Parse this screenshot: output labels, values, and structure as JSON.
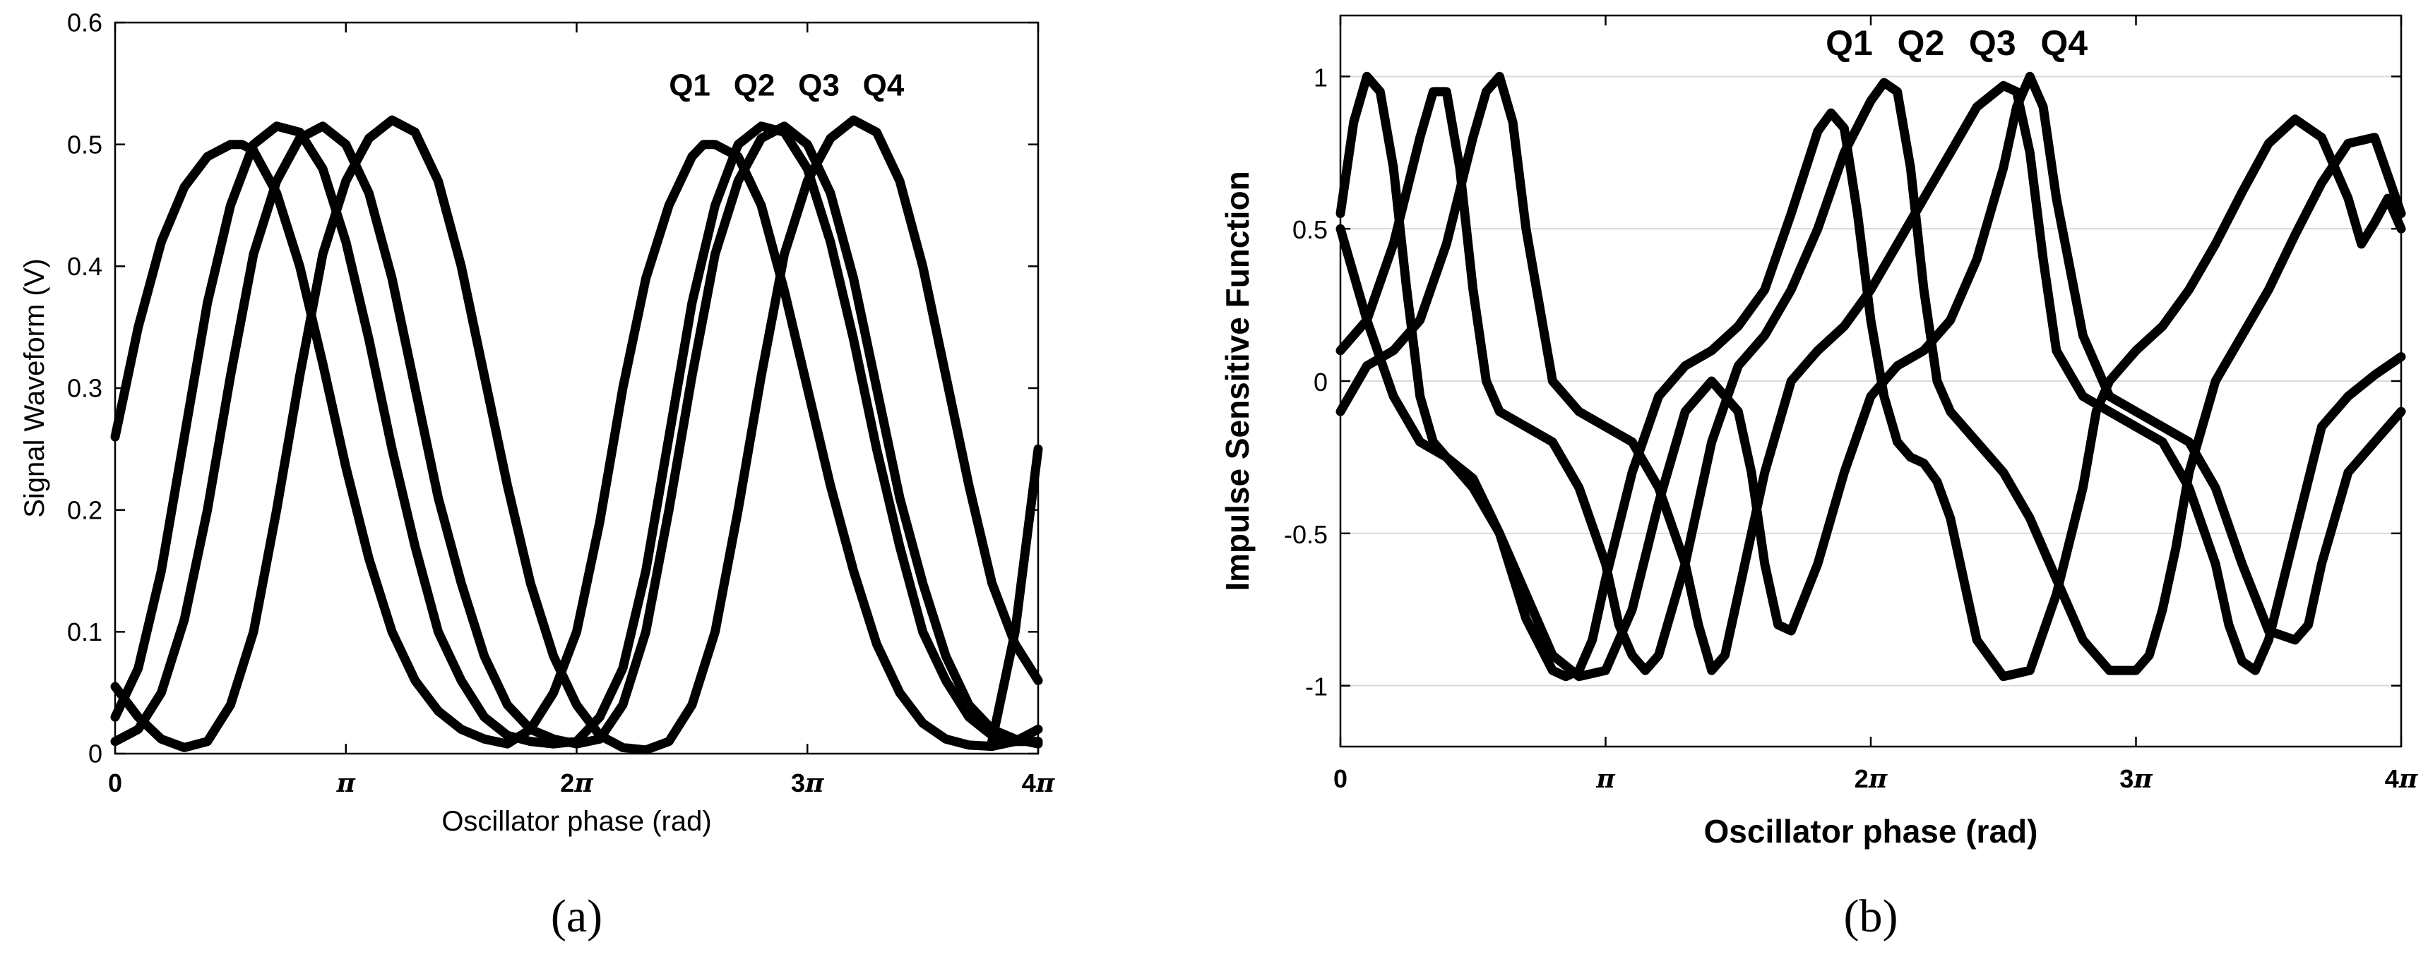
{
  "chart_data": [
    {
      "type": "line",
      "caption": "(a)",
      "xlabel": "Oscillator phase (rad)",
      "ylabel": "Signal Waveform (V)",
      "xlim_pi": [
        0,
        4
      ],
      "ylim": [
        0,
        0.6
      ],
      "grid": false,
      "x_ticks": [
        {
          "value_pi": 0,
          "label": "0",
          "pi": false
        },
        {
          "value_pi": 1,
          "label": "",
          "pi": true
        },
        {
          "value_pi": 2,
          "label": "2",
          "pi": true
        },
        {
          "value_pi": 3,
          "label": "3",
          "pi": true
        },
        {
          "value_pi": 4,
          "label": "4",
          "pi": true
        }
      ],
      "y_ticks": [
        {
          "value": 0,
          "label": "0"
        },
        {
          "value": 0.1,
          "label": "0.1"
        },
        {
          "value": 0.2,
          "label": "0.2"
        },
        {
          "value": 0.3,
          "label": "0.3"
        },
        {
          "value": 0.4,
          "label": "0.4"
        },
        {
          "value": 0.5,
          "label": "0.5"
        },
        {
          "value": 0.6,
          "label": "0.6"
        }
      ],
      "annotations": [
        {
          "text": "Q1",
          "x_pi": 2.4,
          "y": 0.54
        },
        {
          "text": "Q2",
          "x_pi": 2.68,
          "y": 0.54
        },
        {
          "text": "Q3",
          "x_pi": 2.96,
          "y": 0.54
        },
        {
          "text": "Q4",
          "x_pi": 3.24,
          "y": 0.54
        }
      ],
      "series": [
        {
          "x_pi": [
            0,
            0.1,
            0.2,
            0.3,
            0.4,
            0.5,
            0.55,
            0.6,
            0.7,
            0.8,
            0.9,
            1,
            1.1,
            1.2,
            1.3,
            1.4,
            1.5,
            1.6,
            1.7,
            1.8,
            1.9,
            2,
            2.1,
            2.2,
            2.3,
            2.4,
            2.5,
            2.55,
            2.6,
            2.7,
            2.8,
            2.9,
            3,
            3.1,
            3.2,
            3.3,
            3.4,
            3.5,
            3.6,
            3.7,
            3.8,
            3.9,
            4
          ],
          "y": [
            0.26,
            0.35,
            0.42,
            0.465,
            0.49,
            0.5,
            0.5,
            0.495,
            0.46,
            0.4,
            0.32,
            0.235,
            0.16,
            0.1,
            0.06,
            0.035,
            0.02,
            0.012,
            0.008,
            0.02,
            0.05,
            0.1,
            0.19,
            0.3,
            0.39,
            0.45,
            0.49,
            0.5,
            0.5,
            0.49,
            0.45,
            0.38,
            0.3,
            0.22,
            0.15,
            0.09,
            0.05,
            0.025,
            0.012,
            0.007,
            0.006,
            0.01,
            0.02
          ]
        },
        {
          "x_pi": [
            0,
            0.1,
            0.2,
            0.3,
            0.4,
            0.5,
            0.6,
            0.7,
            0.8,
            0.9,
            1,
            1.1,
            1.2,
            1.3,
            1.4,
            1.5,
            1.6,
            1.7,
            1.8,
            1.9,
            2,
            2.1,
            2.2,
            2.3,
            2.4,
            2.5,
            2.6,
            2.7,
            2.8,
            2.9,
            3,
            3.1,
            3.2,
            3.3,
            3.4,
            3.5,
            3.6,
            3.7,
            3.8,
            3.9,
            4
          ],
          "y": [
            0.03,
            0.07,
            0.15,
            0.26,
            0.37,
            0.45,
            0.5,
            0.515,
            0.51,
            0.48,
            0.42,
            0.34,
            0.25,
            0.17,
            0.1,
            0.06,
            0.03,
            0.015,
            0.01,
            0.008,
            0.01,
            0.03,
            0.07,
            0.15,
            0.26,
            0.37,
            0.45,
            0.5,
            0.515,
            0.51,
            0.48,
            0.42,
            0.34,
            0.25,
            0.17,
            0.1,
            0.06,
            0.03,
            0.015,
            0.01,
            0.01
          ]
        },
        {
          "x_pi": [
            0,
            0.1,
            0.2,
            0.3,
            0.4,
            0.5,
            0.6,
            0.7,
            0.8,
            0.9,
            1,
            1.1,
            1.2,
            1.3,
            1.4,
            1.5,
            1.6,
            1.7,
            1.8,
            1.9,
            2,
            2.1,
            2.2,
            2.3,
            2.4,
            2.5,
            2.6,
            2.7,
            2.8,
            2.9,
            3,
            3.1,
            3.2,
            3.3,
            3.4,
            3.5,
            3.6,
            3.7,
            3.8,
            3.9,
            4
          ],
          "y": [
            0.01,
            0.02,
            0.05,
            0.11,
            0.2,
            0.31,
            0.41,
            0.47,
            0.505,
            0.515,
            0.5,
            0.46,
            0.39,
            0.3,
            0.21,
            0.14,
            0.08,
            0.04,
            0.02,
            0.012,
            0.008,
            0.012,
            0.04,
            0.1,
            0.2,
            0.31,
            0.41,
            0.47,
            0.505,
            0.515,
            0.5,
            0.46,
            0.39,
            0.3,
            0.21,
            0.14,
            0.08,
            0.04,
            0.02,
            0.012,
            0.008
          ]
        },
        {
          "x_pi": [
            0,
            0.1,
            0.2,
            0.3,
            0.4,
            0.5,
            0.6,
            0.7,
            0.8,
            0.9,
            1,
            1.1,
            1.2,
            1.3,
            1.4,
            1.5,
            1.6,
            1.7,
            1.8,
            1.9,
            2,
            2.1,
            2.2,
            2.3,
            2.4,
            2.5,
            2.6,
            2.7,
            2.8,
            2.9,
            3,
            3.1,
            3.2,
            3.3,
            3.4,
            3.5,
            3.6,
            3.7,
            3.8,
            3.9,
            4
          ],
          "y": [
            0.055,
            0.03,
            0.012,
            0.005,
            0.01,
            0.04,
            0.1,
            0.2,
            0.31,
            0.41,
            0.47,
            0.505,
            0.52,
            0.51,
            0.47,
            0.4,
            0.31,
            0.22,
            0.14,
            0.08,
            0.04,
            0.015,
            0.005,
            0.003,
            0.01,
            0.04,
            0.1,
            0.2,
            0.31,
            0.41,
            0.47,
            0.505,
            0.52,
            0.51,
            0.47,
            0.4,
            0.31,
            0.22,
            0.14,
            0.09,
            0.06
          ]
        },
        {
          "x_pi": [
            3.8,
            3.9,
            4
          ],
          "y": [
            0.01,
            0.1,
            0.25
          ]
        }
      ]
    },
    {
      "type": "line",
      "caption": "(b)",
      "xlabel": "Oscillator phase (rad)",
      "ylabel": "Impulse Sensitive Function",
      "xlim_pi": [
        0,
        4
      ],
      "ylim": [
        -1.2,
        1.2
      ],
      "grid": true,
      "x_ticks": [
        {
          "value_pi": 0,
          "label": "0",
          "pi": false
        },
        {
          "value_pi": 1,
          "label": "",
          "pi": true
        },
        {
          "value_pi": 2,
          "label": "2",
          "pi": true
        },
        {
          "value_pi": 3,
          "label": "3",
          "pi": true
        },
        {
          "value_pi": 4,
          "label": "4",
          "pi": true
        }
      ],
      "y_ticks": [
        {
          "value": -1,
          "label": "-1"
        },
        {
          "value": -0.5,
          "label": "-0.5"
        },
        {
          "value": 0,
          "label": "0"
        },
        {
          "value": 0.5,
          "label": "0.5"
        },
        {
          "value": 1,
          "label": "1"
        }
      ],
      "annotations": [
        {
          "text": "Q1",
          "x_pi": 1.83,
          "y": 1.07
        },
        {
          "text": "Q2",
          "x_pi": 2.1,
          "y": 1.07
        },
        {
          "text": "Q3",
          "x_pi": 2.37,
          "y": 1.07
        },
        {
          "text": "Q4",
          "x_pi": 2.64,
          "y": 1.07
        }
      ],
      "series": [
        {
          "x_pi": [
            0,
            0.05,
            0.1,
            0.15,
            0.2,
            0.25,
            0.3,
            0.35,
            0.4,
            0.5,
            0.6,
            0.7,
            0.8,
            0.85,
            0.9,
            0.95,
            1,
            1.1,
            1.2,
            1.3,
            1.4,
            1.5,
            1.6,
            1.7,
            1.8,
            1.85,
            1.9,
            1.95,
            2,
            2.05,
            2.1,
            2.15,
            2.2,
            2.25,
            2.3,
            2.35,
            2.4,
            2.5,
            2.6,
            2.7,
            2.8,
            2.85,
            2.9,
            2.95,
            3,
            3.1,
            3.2,
            3.3,
            3.4,
            3.5,
            3.6,
            3.7,
            3.8,
            3.85,
            3.9,
            3.95,
            4
          ],
          "y": [
            0.55,
            0.85,
            1.0,
            0.95,
            0.7,
            0.3,
            -0.05,
            -0.2,
            -0.25,
            -0.32,
            -0.5,
            -0.78,
            -0.95,
            -0.97,
            -0.95,
            -0.85,
            -0.65,
            -0.3,
            -0.05,
            0.05,
            0.1,
            0.18,
            0.3,
            0.55,
            0.82,
            0.88,
            0.83,
            0.55,
            0.2,
            -0.05,
            -0.2,
            -0.25,
            -0.27,
            -0.33,
            -0.45,
            -0.65,
            -0.85,
            -0.97,
            -0.95,
            -0.7,
            -0.35,
            -0.1,
            0.0,
            0.05,
            0.1,
            0.18,
            0.3,
            0.45,
            0.62,
            0.78,
            0.86,
            0.8,
            0.6,
            0.45,
            0.52,
            0.6,
            0.5
          ]
        },
        {
          "x_pi": [
            0,
            0.1,
            0.2,
            0.3,
            0.35,
            0.4,
            0.45,
            0.5,
            0.55,
            0.6,
            0.7,
            0.8,
            0.9,
            1,
            1.05,
            1.1,
            1.15,
            1.2,
            1.3,
            1.4,
            1.5,
            1.6,
            1.7,
            1.8,
            1.9,
            2,
            2.05,
            2.1,
            2.15,
            2.2,
            2.25,
            2.3,
            2.35,
            2.4,
            2.5,
            2.6,
            2.7,
            2.8,
            2.9,
            3,
            3.05,
            3.1,
            3.15,
            3.2,
            3.3,
            3.4,
            3.5,
            3.6,
            3.7,
            3.8,
            3.9,
            4
          ],
          "y": [
            0.1,
            0.2,
            0.45,
            0.8,
            0.95,
            0.95,
            0.7,
            0.3,
            0.0,
            -0.1,
            -0.15,
            -0.2,
            -0.35,
            -0.6,
            -0.8,
            -0.9,
            -0.95,
            -0.9,
            -0.6,
            -0.2,
            0.05,
            0.15,
            0.3,
            0.5,
            0.75,
            0.92,
            0.98,
            0.95,
            0.7,
            0.3,
            0.0,
            -0.1,
            -0.15,
            -0.2,
            -0.3,
            -0.45,
            -0.65,
            -0.85,
            -0.95,
            -0.95,
            -0.9,
            -0.75,
            -0.55,
            -0.3,
            0.0,
            0.15,
            0.3,
            0.48,
            0.65,
            0.78,
            0.8,
            0.55
          ]
        },
        {
          "x_pi": [
            0,
            0.1,
            0.2,
            0.3,
            0.4,
            0.5,
            0.55,
            0.6,
            0.65,
            0.7,
            0.8,
            0.9,
            1,
            1.1,
            1.2,
            1.3,
            1.35,
            1.4,
            1.45,
            1.5,
            1.6,
            1.7,
            1.8,
            1.9,
            2,
            2.1,
            2.2,
            2.3,
            2.4,
            2.5,
            2.55,
            2.6,
            2.65,
            2.7,
            2.8,
            2.9,
            3,
            3.1,
            3.2,
            3.3,
            3.35,
            3.4,
            3.45,
            3.5,
            3.6,
            3.7,
            3.8,
            3.9,
            4
          ],
          "y": [
            -0.1,
            0.05,
            0.1,
            0.2,
            0.45,
            0.8,
            0.95,
            1.0,
            0.85,
            0.5,
            0.0,
            -0.1,
            -0.15,
            -0.2,
            -0.35,
            -0.6,
            -0.8,
            -0.95,
            -0.9,
            -0.7,
            -0.3,
            0.0,
            0.1,
            0.18,
            0.3,
            0.45,
            0.6,
            0.75,
            0.9,
            0.97,
            0.95,
            0.75,
            0.4,
            0.1,
            -0.05,
            -0.1,
            -0.15,
            -0.2,
            -0.35,
            -0.6,
            -0.8,
            -0.92,
            -0.95,
            -0.85,
            -0.5,
            -0.15,
            -0.05,
            0.02,
            0.08
          ]
        },
        {
          "x_pi": [
            0,
            0.1,
            0.2,
            0.3,
            0.4,
            0.5,
            0.6,
            0.7,
            0.8,
            0.9,
            1,
            1.1,
            1.2,
            1.3,
            1.4,
            1.5,
            1.55,
            1.6,
            1.65,
            1.7,
            1.8,
            1.9,
            2,
            2.1,
            2.2,
            2.3,
            2.4,
            2.5,
            2.55,
            2.6,
            2.65,
            2.7,
            2.8,
            2.9,
            3,
            3.1,
            3.2,
            3.3,
            3.4,
            3.5,
            3.6,
            3.65,
            3.7,
            3.8,
            3.9,
            4
          ],
          "y": [
            0.5,
            0.2,
            -0.05,
            -0.2,
            -0.25,
            -0.35,
            -0.5,
            -0.7,
            -0.9,
            -0.97,
            -0.95,
            -0.75,
            -0.4,
            -0.1,
            0.0,
            -0.1,
            -0.3,
            -0.6,
            -0.8,
            -0.82,
            -0.6,
            -0.3,
            -0.05,
            0.05,
            0.1,
            0.2,
            0.4,
            0.7,
            0.9,
            1.0,
            0.9,
            0.6,
            0.15,
            -0.05,
            -0.1,
            -0.15,
            -0.2,
            -0.35,
            -0.6,
            -0.82,
            -0.85,
            -0.8,
            -0.6,
            -0.3,
            -0.2,
            -0.1
          ]
        }
      ]
    }
  ]
}
